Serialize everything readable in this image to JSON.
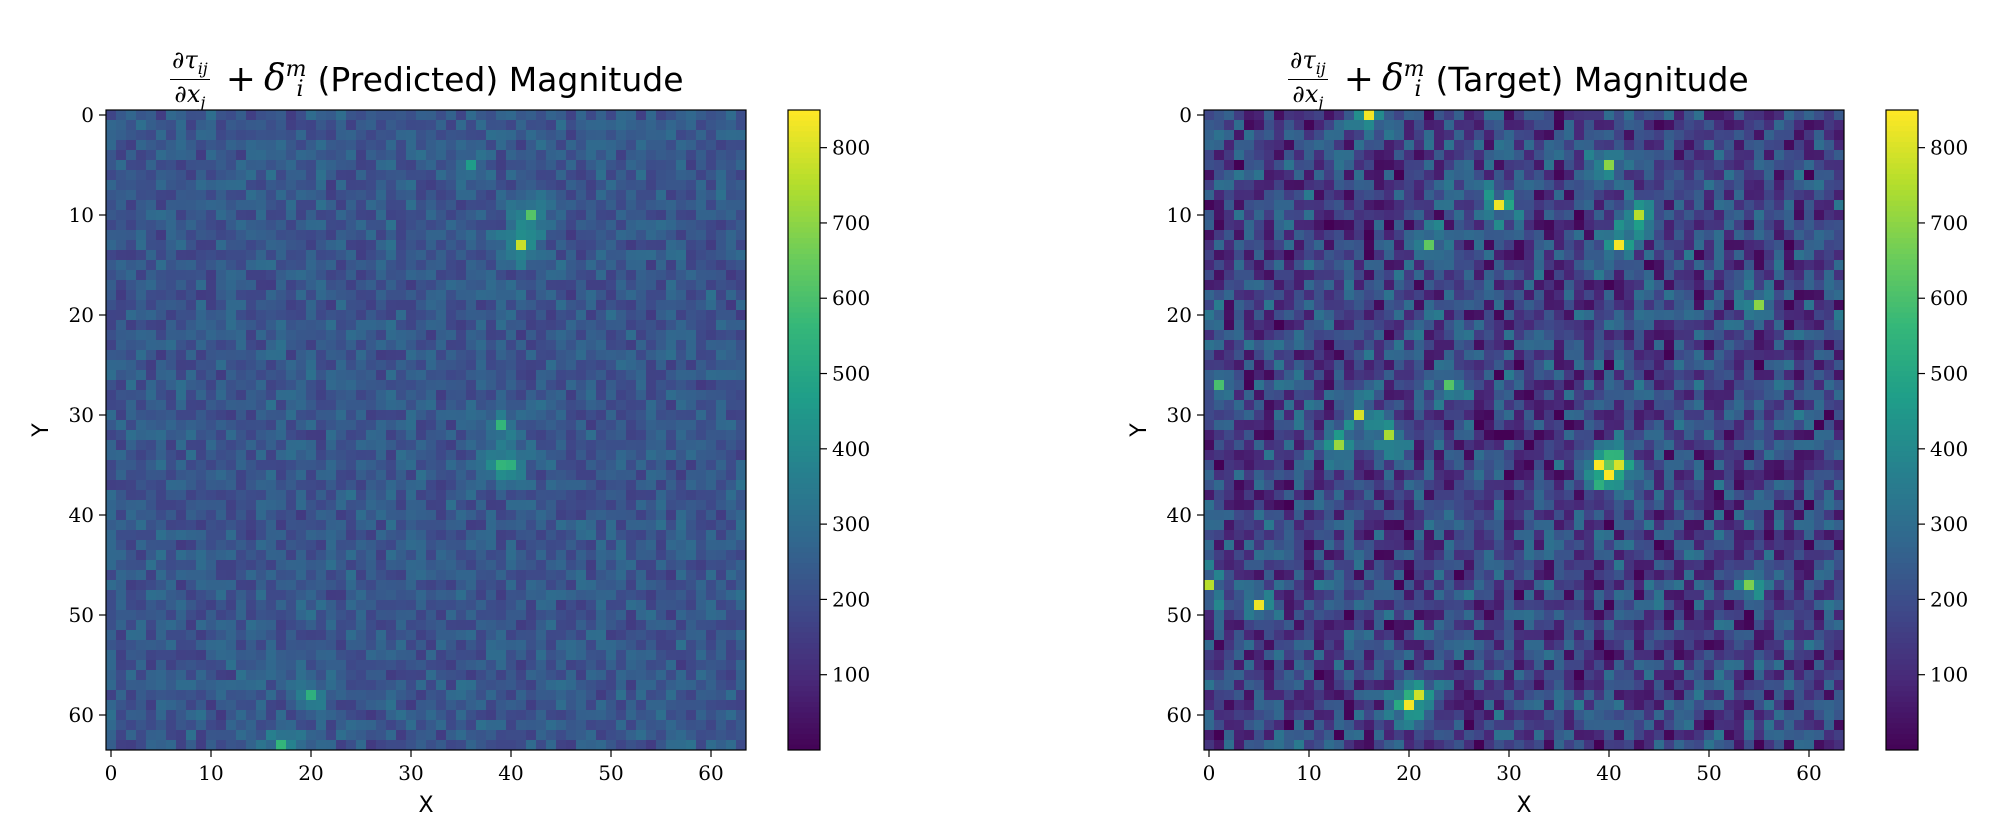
{
  "chart_data": [
    {
      "type": "heatmap",
      "title": {
        "numerator": "∂τ",
        "numerator_sub": "ij",
        "denominator": "∂x",
        "denominator_sub": "j",
        "plus": "+",
        "delta": "δ",
        "delta_sup": "m",
        "delta_sub": "i",
        "suffix": "(Predicted) Magnitude"
      },
      "xlabel": "X",
      "ylabel": "Y",
      "grid_size": [
        64,
        64
      ],
      "xlim": [
        -0.5,
        63.5
      ],
      "ylim": [
        63.5,
        -0.5
      ],
      "x_ticks": [
        "0",
        "10",
        "20",
        "30",
        "40",
        "50",
        "60"
      ],
      "y_ticks": [
        "0",
        "10",
        "20",
        "30",
        "40",
        "50",
        "60"
      ],
      "colormap": "viridis",
      "color_range": [
        0,
        850
      ],
      "colorbar_ticks": [
        "100",
        "200",
        "300",
        "400",
        "500",
        "600",
        "700",
        "800"
      ],
      "baseline": 230,
      "noise": 90,
      "hotspots": [
        {
          "x": 41,
          "y": 13,
          "value": 780
        },
        {
          "x": 42,
          "y": 10,
          "value": 620
        },
        {
          "x": 39,
          "y": 31,
          "value": 560
        },
        {
          "x": 39,
          "y": 35,
          "value": 560
        },
        {
          "x": 40,
          "y": 35,
          "value": 540
        },
        {
          "x": 20,
          "y": 58,
          "value": 540
        },
        {
          "x": 17,
          "y": 63,
          "value": 560
        },
        {
          "x": 36,
          "y": 5,
          "value": 470
        }
      ]
    },
    {
      "type": "heatmap",
      "title": {
        "numerator": "∂τ",
        "numerator_sub": "ij",
        "denominator": "∂x",
        "denominator_sub": "j",
        "plus": "+",
        "delta": "δ",
        "delta_sup": "m",
        "delta_sub": "i",
        "suffix": "(Target) Magnitude"
      },
      "xlabel": "X",
      "ylabel": "Y",
      "grid_size": [
        64,
        64
      ],
      "xlim": [
        -0.5,
        63.5
      ],
      "ylim": [
        63.5,
        -0.5
      ],
      "x_ticks": [
        "0",
        "10",
        "20",
        "30",
        "40",
        "50",
        "60"
      ],
      "y_ticks": [
        "0",
        "10",
        "20",
        "30",
        "40",
        "50",
        "60"
      ],
      "colormap": "viridis",
      "color_range": [
        0,
        850
      ],
      "colorbar_ticks": [
        "100",
        "200",
        "300",
        "400",
        "500",
        "600",
        "700",
        "800"
      ],
      "baseline": 170,
      "noise": 190,
      "hotspots": [
        {
          "x": 16,
          "y": 0,
          "value": 840
        },
        {
          "x": 29,
          "y": 9,
          "value": 830
        },
        {
          "x": 41,
          "y": 13,
          "value": 840
        },
        {
          "x": 43,
          "y": 10,
          "value": 760
        },
        {
          "x": 40,
          "y": 5,
          "value": 700
        },
        {
          "x": 39,
          "y": 35,
          "value": 850
        },
        {
          "x": 40,
          "y": 36,
          "value": 850
        },
        {
          "x": 41,
          "y": 35,
          "value": 800
        },
        {
          "x": 15,
          "y": 30,
          "value": 800
        },
        {
          "x": 13,
          "y": 33,
          "value": 720
        },
        {
          "x": 18,
          "y": 32,
          "value": 740
        },
        {
          "x": 5,
          "y": 49,
          "value": 830
        },
        {
          "x": 0,
          "y": 47,
          "value": 760
        },
        {
          "x": 20,
          "y": 59,
          "value": 840
        },
        {
          "x": 21,
          "y": 58,
          "value": 790
        },
        {
          "x": 55,
          "y": 19,
          "value": 700
        },
        {
          "x": 54,
          "y": 47,
          "value": 680
        },
        {
          "x": 22,
          "y": 13,
          "value": 640
        },
        {
          "x": 24,
          "y": 27,
          "value": 620
        },
        {
          "x": 1,
          "y": 27,
          "value": 600
        }
      ]
    }
  ]
}
